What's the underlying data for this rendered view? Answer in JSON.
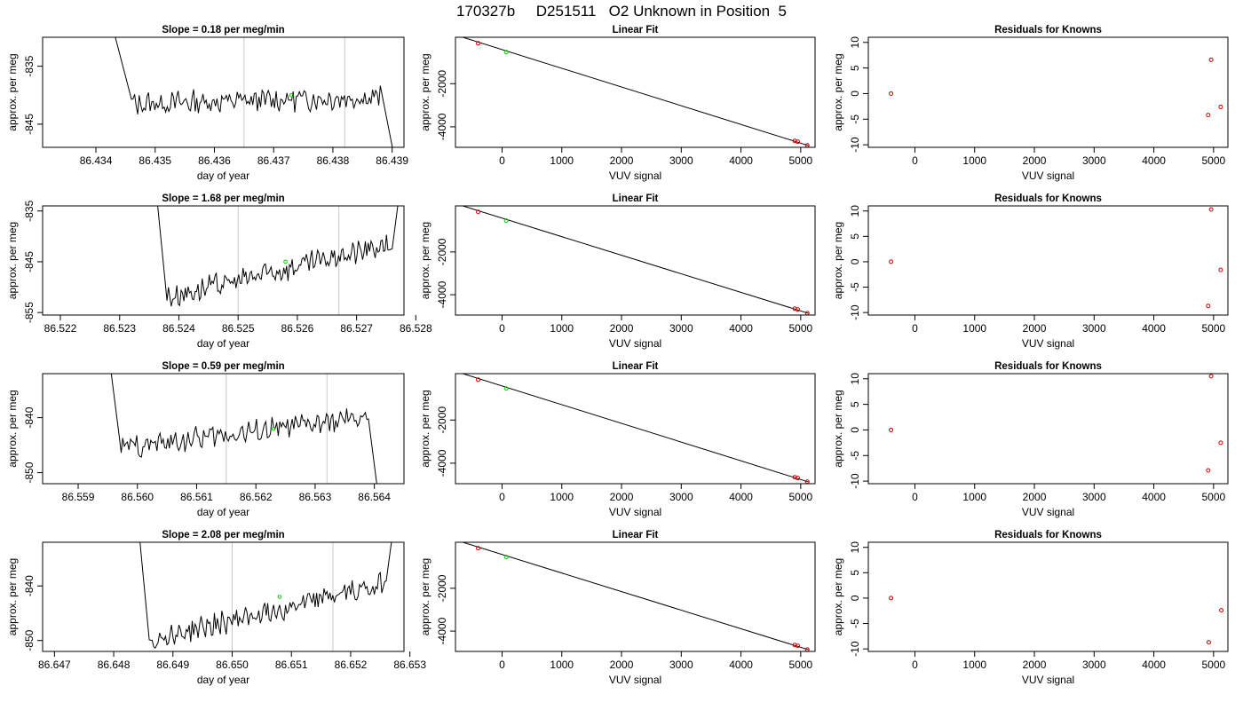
{
  "figure_title": "170327b     D251511   O2 Unknown in Position  5",
  "colors": {
    "trace": "#000000",
    "known_point": "#cc0000",
    "unknown_point": "#00cc00",
    "vline": "#c8c8c8",
    "fit_line": "#000000"
  },
  "chart_data": [
    {
      "type": "line",
      "panel": "timeseries",
      "row": 1,
      "title": "Slope =  0.18  per meg/min",
      "xlabel": "day of year",
      "ylabel": "approx. per meg",
      "xlim": [
        86.4331,
        86.4392
      ],
      "ylim": [
        -849,
        -830
      ],
      "xticks": [
        86.434,
        86.435,
        86.436,
        86.437,
        86.438,
        86.439
      ],
      "xtick_labels": [
        "86.434",
        "86.435",
        "86.436",
        "86.437",
        "86.438",
        "86.439"
      ],
      "yticks": [
        -835,
        -845
      ],
      "ytick_labels": [
        "-835",
        "-845"
      ],
      "vlines": [
        86.4365,
        86.4382
      ],
      "green_point": {
        "x": 86.4373,
        "y": -840
      },
      "trend": {
        "x0": 86.4346,
        "y0": -841.5,
        "x1": 86.4388,
        "y1": -840.3,
        "base": -841
      },
      "trace_start": 86.4342,
      "trace_end": 86.4391
    },
    {
      "type": "scatter",
      "panel": "fit",
      "row": 1,
      "title": "Linear Fit",
      "xlabel": "VUV signal",
      "ylabel": "approx. per meg",
      "xlim": [
        -780,
        5240
      ],
      "ylim": [
        -4950,
        150
      ],
      "xticks": [
        0,
        1000,
        2000,
        3000,
        4000,
        5000
      ],
      "xtick_labels": [
        "0",
        "1000",
        "2000",
        "3000",
        "4000",
        "5000"
      ],
      "yticks": [
        -2000,
        -4000
      ],
      "ytick_labels": [
        "-2000",
        "-4000"
      ],
      "fit_line": {
        "x0": -680,
        "y0": 170,
        "x1": 5130,
        "y1": -4870
      },
      "known_points": [
        {
          "x": -400,
          "y": -130
        },
        {
          "x": 4900,
          "y": -4650
        },
        {
          "x": 4950,
          "y": -4690
        },
        {
          "x": 5110,
          "y": -4860
        }
      ],
      "unknown_points": [
        {
          "x": 70,
          "y": -540
        }
      ]
    },
    {
      "type": "scatter",
      "panel": "residuals",
      "row": 1,
      "title": "Residuals for Knowns",
      "xlabel": "VUV signal",
      "ylabel": "approx. per meg",
      "xlim": [
        -780,
        5240
      ],
      "ylim": [
        -10.5,
        11
      ],
      "xticks": [
        0,
        1000,
        2000,
        3000,
        4000,
        5000
      ],
      "xtick_labels": [
        "0",
        "1000",
        "2000",
        "3000",
        "4000",
        "5000"
      ],
      "yticks": [
        10,
        5,
        0,
        -5,
        -10
      ],
      "ytick_labels": [
        "10",
        "5",
        "0",
        "-5",
        "-10"
      ],
      "points": [
        {
          "x": -400,
          "y": 0
        },
        {
          "x": 4910,
          "y": -4.2
        },
        {
          "x": 4960,
          "y": 6.6
        },
        {
          "x": 5120,
          "y": -2.6
        }
      ]
    },
    {
      "type": "line",
      "panel": "timeseries",
      "row": 2,
      "title": "Slope =  1.68  per meg/min",
      "xlabel": "day of year",
      "ylabel": "approx. per meg",
      "xlim": [
        86.5217,
        86.5278
      ],
      "ylim": [
        -855.5,
        -834
      ],
      "xticks": [
        86.522,
        86.523,
        86.524,
        86.525,
        86.526,
        86.527,
        86.528
      ],
      "xtick_labels": [
        "86.522",
        "86.523",
        "86.524",
        "86.525",
        "86.526",
        "86.527",
        "86.528"
      ],
      "yticks": [
        -835,
        -845,
        -855
      ],
      "ytick_labels": [
        "-835",
        "-845",
        "-855"
      ],
      "vlines": [
        86.525,
        86.5267
      ],
      "green_point": {
        "x": 86.5258,
        "y": -845
      },
      "trend": {
        "x0": 86.5238,
        "y0": -852,
        "x1": 86.5276,
        "y1": -841.5,
        "base": -846
      },
      "trace_start": 86.5236,
      "trace_end": 86.52775
    },
    {
      "type": "scatter",
      "panel": "fit",
      "row": 2,
      "title": "Linear Fit",
      "xlabel": "VUV signal",
      "ylabel": "approx. per meg",
      "xlim": [
        -780,
        5240
      ],
      "ylim": [
        -4950,
        150
      ],
      "xticks": [
        0,
        1000,
        2000,
        3000,
        4000,
        5000
      ],
      "xtick_labels": [
        "0",
        "1000",
        "2000",
        "3000",
        "4000",
        "5000"
      ],
      "yticks": [
        -2000,
        -4000
      ],
      "ytick_labels": [
        "-2000",
        "-4000"
      ],
      "fit_line": {
        "x0": -680,
        "y0": 170,
        "x1": 5130,
        "y1": -4870
      },
      "known_points": [
        {
          "x": -400,
          "y": -130
        },
        {
          "x": 4900,
          "y": -4650
        },
        {
          "x": 4950,
          "y": -4690
        },
        {
          "x": 5110,
          "y": -4860
        }
      ],
      "unknown_points": [
        {
          "x": 70,
          "y": -540
        }
      ]
    },
    {
      "type": "scatter",
      "panel": "residuals",
      "row": 2,
      "title": "Residuals for Knowns",
      "xlabel": "VUV signal",
      "ylabel": "approx. per meg",
      "xlim": [
        -780,
        5240
      ],
      "ylim": [
        -10.5,
        11
      ],
      "xticks": [
        0,
        1000,
        2000,
        3000,
        4000,
        5000
      ],
      "xtick_labels": [
        "0",
        "1000",
        "2000",
        "3000",
        "4000",
        "5000"
      ],
      "yticks": [
        10,
        5,
        0,
        -5,
        -10
      ],
      "ytick_labels": [
        "10",
        "5",
        "0",
        "-5",
        "-10"
      ],
      "points": [
        {
          "x": -400,
          "y": 0
        },
        {
          "x": 4910,
          "y": -8.7
        },
        {
          "x": 4960,
          "y": 10.3
        },
        {
          "x": 5120,
          "y": -1.6
        }
      ]
    },
    {
      "type": "line",
      "panel": "timeseries",
      "row": 3,
      "title": "Slope =  0.59  per meg/min",
      "xlabel": "day of year",
      "ylabel": "approx. per meg",
      "xlim": [
        86.5584,
        86.5645
      ],
      "ylim": [
        -852,
        -832
      ],
      "xticks": [
        86.559,
        86.56,
        86.561,
        86.562,
        86.563,
        86.564
      ],
      "xtick_labels": [
        "86.559",
        "86.560",
        "86.561",
        "86.562",
        "86.563",
        "86.564"
      ],
      "yticks": [
        -840,
        -850
      ],
      "ytick_labels": [
        "-840",
        "-850"
      ],
      "vlines": [
        86.5615,
        86.5632
      ],
      "green_point": {
        "x": 86.5623,
        "y": -842
      },
      "trend": {
        "x0": 86.5597,
        "y0": -845.5,
        "x1": 86.5639,
        "y1": -840,
        "base": -843
      },
      "trace_start": 86.5595,
      "trace_end": 86.5641
    },
    {
      "type": "scatter",
      "panel": "fit",
      "row": 3,
      "title": "Linear Fit",
      "xlabel": "VUV signal",
      "ylabel": "approx. per meg",
      "xlim": [
        -780,
        5240
      ],
      "ylim": [
        -4950,
        150
      ],
      "xticks": [
        0,
        1000,
        2000,
        3000,
        4000,
        5000
      ],
      "xtick_labels": [
        "0",
        "1000",
        "2000",
        "3000",
        "4000",
        "5000"
      ],
      "yticks": [
        -2000,
        -4000
      ],
      "ytick_labels": [
        "-2000",
        "-4000"
      ],
      "fit_line": {
        "x0": -680,
        "y0": 170,
        "x1": 5130,
        "y1": -4870
      },
      "known_points": [
        {
          "x": -400,
          "y": -130
        },
        {
          "x": 4900,
          "y": -4650
        },
        {
          "x": 4950,
          "y": -4690
        },
        {
          "x": 5110,
          "y": -4860
        }
      ],
      "unknown_points": [
        {
          "x": 70,
          "y": -540
        }
      ]
    },
    {
      "type": "scatter",
      "panel": "residuals",
      "row": 3,
      "title": "Residuals for Knowns",
      "xlabel": "VUV signal",
      "ylabel": "approx. per meg",
      "xlim": [
        -780,
        5240
      ],
      "ylim": [
        -10.5,
        11
      ],
      "xticks": [
        0,
        1000,
        2000,
        3000,
        4000,
        5000
      ],
      "xtick_labels": [
        "0",
        "1000",
        "2000",
        "3000",
        "4000",
        "5000"
      ],
      "yticks": [
        10,
        5,
        0,
        -5,
        -10
      ],
      "ytick_labels": [
        "10",
        "5",
        "0",
        "-5",
        "-10"
      ],
      "points": [
        {
          "x": -400,
          "y": 0
        },
        {
          "x": 4910,
          "y": -7.9
        },
        {
          "x": 4960,
          "y": 10.5
        },
        {
          "x": 5120,
          "y": -2.5
        }
      ]
    },
    {
      "type": "line",
      "panel": "timeseries",
      "row": 4,
      "title": "Slope =  2.08  per meg/min",
      "xlabel": "day of year",
      "ylabel": "approx. per meg",
      "xlim": [
        86.6468,
        86.6529
      ],
      "ylim": [
        -852,
        -832
      ],
      "xticks": [
        86.647,
        86.648,
        86.649,
        86.65,
        86.651,
        86.652,
        86.653
      ],
      "xtick_labels": [
        "86.647",
        "86.648",
        "86.649",
        "86.650",
        "86.651",
        "86.652",
        "86.653"
      ],
      "yticks": [
        -840,
        -850
      ],
      "ytick_labels": [
        "-840",
        "-850"
      ],
      "vlines": [
        86.65,
        86.6517
      ],
      "green_point": {
        "x": 86.6508,
        "y": -842
      },
      "trend": {
        "x0": 86.6486,
        "y0": -850,
        "x1": 86.6526,
        "y1": -839.5,
        "base": -844
      },
      "trace_start": 86.6484,
      "trace_end": 86.65275
    },
    {
      "type": "scatter",
      "panel": "fit",
      "row": 4,
      "title": "Linear Fit",
      "xlabel": "VUV signal",
      "ylabel": "approx. per meg",
      "xlim": [
        -780,
        5240
      ],
      "ylim": [
        -4950,
        150
      ],
      "xticks": [
        0,
        1000,
        2000,
        3000,
        4000,
        5000
      ],
      "xtick_labels": [
        "0",
        "1000",
        "2000",
        "3000",
        "4000",
        "5000"
      ],
      "yticks": [
        -2000,
        -4000
      ],
      "ytick_labels": [
        "-2000",
        "-4000"
      ],
      "fit_line": {
        "x0": -680,
        "y0": 170,
        "x1": 5130,
        "y1": -4870
      },
      "known_points": [
        {
          "x": -400,
          "y": -130
        },
        {
          "x": 4900,
          "y": -4650
        },
        {
          "x": 4950,
          "y": -4690
        },
        {
          "x": 5110,
          "y": -4860
        }
      ],
      "unknown_points": [
        {
          "x": 70,
          "y": -540
        }
      ]
    },
    {
      "type": "scatter",
      "panel": "residuals",
      "row": 4,
      "title": "Residuals for Knowns",
      "xlabel": "VUV signal",
      "ylabel": "approx. per meg",
      "xlim": [
        -780,
        5240
      ],
      "ylim": [
        -10.5,
        11
      ],
      "xticks": [
        0,
        1000,
        2000,
        3000,
        4000,
        5000
      ],
      "xtick_labels": [
        "0",
        "1000",
        "2000",
        "3000",
        "4000",
        "5000"
      ],
      "yticks": [
        10,
        5,
        0,
        -5,
        -10
      ],
      "ytick_labels": [
        "10",
        "5",
        "0",
        "-5",
        "-10"
      ],
      "points": [
        {
          "x": -400,
          "y": 0
        },
        {
          "x": 4920,
          "y": -8.7
        },
        {
          "x": 5130,
          "y": -2.4
        }
      ]
    }
  ]
}
